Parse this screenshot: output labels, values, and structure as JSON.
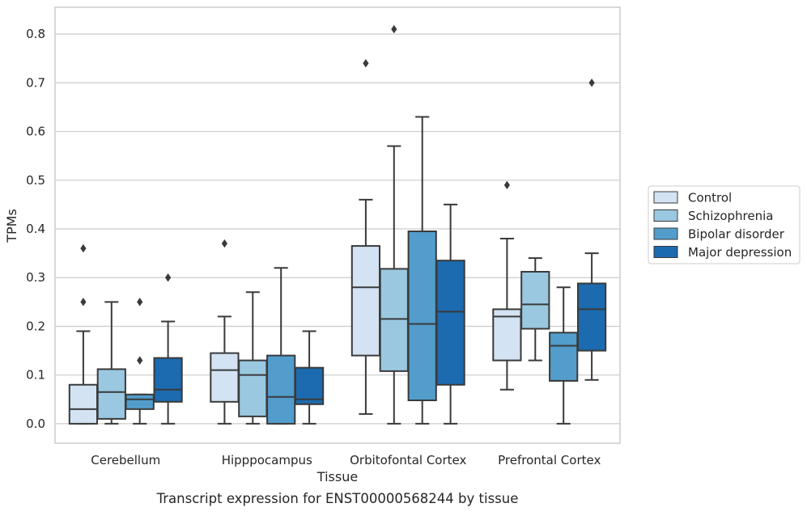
{
  "chart_data": {
    "type": "box",
    "xlabel": "Tissue",
    "ylabel": "TPMs",
    "caption": "Transcript expression for ENST00000568244 by tissue",
    "ylim": [
      -0.04,
      0.855
    ],
    "yticks": [
      0.0,
      0.1,
      0.2,
      0.3,
      0.4,
      0.5,
      0.6,
      0.7,
      0.8
    ],
    "ytick_labels": [
      "0.0",
      "0.1",
      "0.2",
      "0.3",
      "0.4",
      "0.5",
      "0.6",
      "0.7",
      "0.8"
    ],
    "grid": true,
    "legend_position": "right",
    "categories": [
      "Cerebellum",
      "Hipppocampus",
      "Orbitofontal Cortex",
      "Prefrontal Cortex"
    ],
    "series": [
      {
        "name": "Control",
        "color": "#d3e3f3",
        "boxes": [
          {
            "whislo": 0.0,
            "q1": 0.0,
            "med": 0.03,
            "q3": 0.08,
            "whishi": 0.19,
            "fliers": [
              0.25,
              0.36
            ]
          },
          {
            "whislo": 0.0,
            "q1": 0.045,
            "med": 0.11,
            "q3": 0.145,
            "whishi": 0.22,
            "fliers": [
              0.37
            ]
          },
          {
            "whislo": 0.02,
            "q1": 0.14,
            "med": 0.28,
            "q3": 0.365,
            "whishi": 0.46,
            "fliers": [
              0.74
            ]
          },
          {
            "whislo": 0.07,
            "q1": 0.13,
            "med": 0.22,
            "q3": 0.235,
            "whishi": 0.38,
            "fliers": [
              0.49
            ]
          }
        ]
      },
      {
        "name": "Schizophrenia",
        "color": "#9ac8e0",
        "boxes": [
          {
            "whislo": 0.0,
            "q1": 0.01,
            "med": 0.065,
            "q3": 0.112,
            "whishi": 0.25,
            "fliers": []
          },
          {
            "whislo": 0.0,
            "q1": 0.015,
            "med": 0.1,
            "q3": 0.13,
            "whishi": 0.27,
            "fliers": []
          },
          {
            "whislo": 0.0,
            "q1": 0.108,
            "med": 0.215,
            "q3": 0.318,
            "whishi": 0.57,
            "fliers": [
              0.81
            ]
          },
          {
            "whislo": 0.13,
            "q1": 0.195,
            "med": 0.245,
            "q3": 0.312,
            "whishi": 0.34,
            "fliers": []
          }
        ]
      },
      {
        "name": "Bipolar disorder",
        "color": "#529dcc",
        "boxes": [
          {
            "whislo": 0.0,
            "q1": 0.03,
            "med": 0.05,
            "q3": 0.06,
            "whishi": 0.06,
            "fliers": [
              0.13,
              0.25
            ]
          },
          {
            "whislo": 0.0,
            "q1": 0.0,
            "med": 0.055,
            "q3": 0.14,
            "whishi": 0.32,
            "fliers": []
          },
          {
            "whislo": 0.0,
            "q1": 0.048,
            "med": 0.205,
            "q3": 0.395,
            "whishi": 0.63,
            "fliers": []
          },
          {
            "whislo": 0.0,
            "q1": 0.088,
            "med": 0.16,
            "q3": 0.187,
            "whishi": 0.28,
            "fliers": []
          }
        ]
      },
      {
        "name": "Major depression",
        "color": "#1c6aaf",
        "boxes": [
          {
            "whislo": 0.0,
            "q1": 0.045,
            "med": 0.07,
            "q3": 0.135,
            "whishi": 0.21,
            "fliers": [
              0.3
            ]
          },
          {
            "whislo": 0.0,
            "q1": 0.04,
            "med": 0.05,
            "q3": 0.115,
            "whishi": 0.19,
            "fliers": []
          },
          {
            "whislo": 0.0,
            "q1": 0.08,
            "med": 0.23,
            "q3": 0.335,
            "whishi": 0.45,
            "fliers": []
          },
          {
            "whislo": 0.09,
            "q1": 0.15,
            "med": 0.235,
            "q3": 0.288,
            "whishi": 0.35,
            "fliers": [
              0.7
            ]
          }
        ]
      }
    ]
  }
}
